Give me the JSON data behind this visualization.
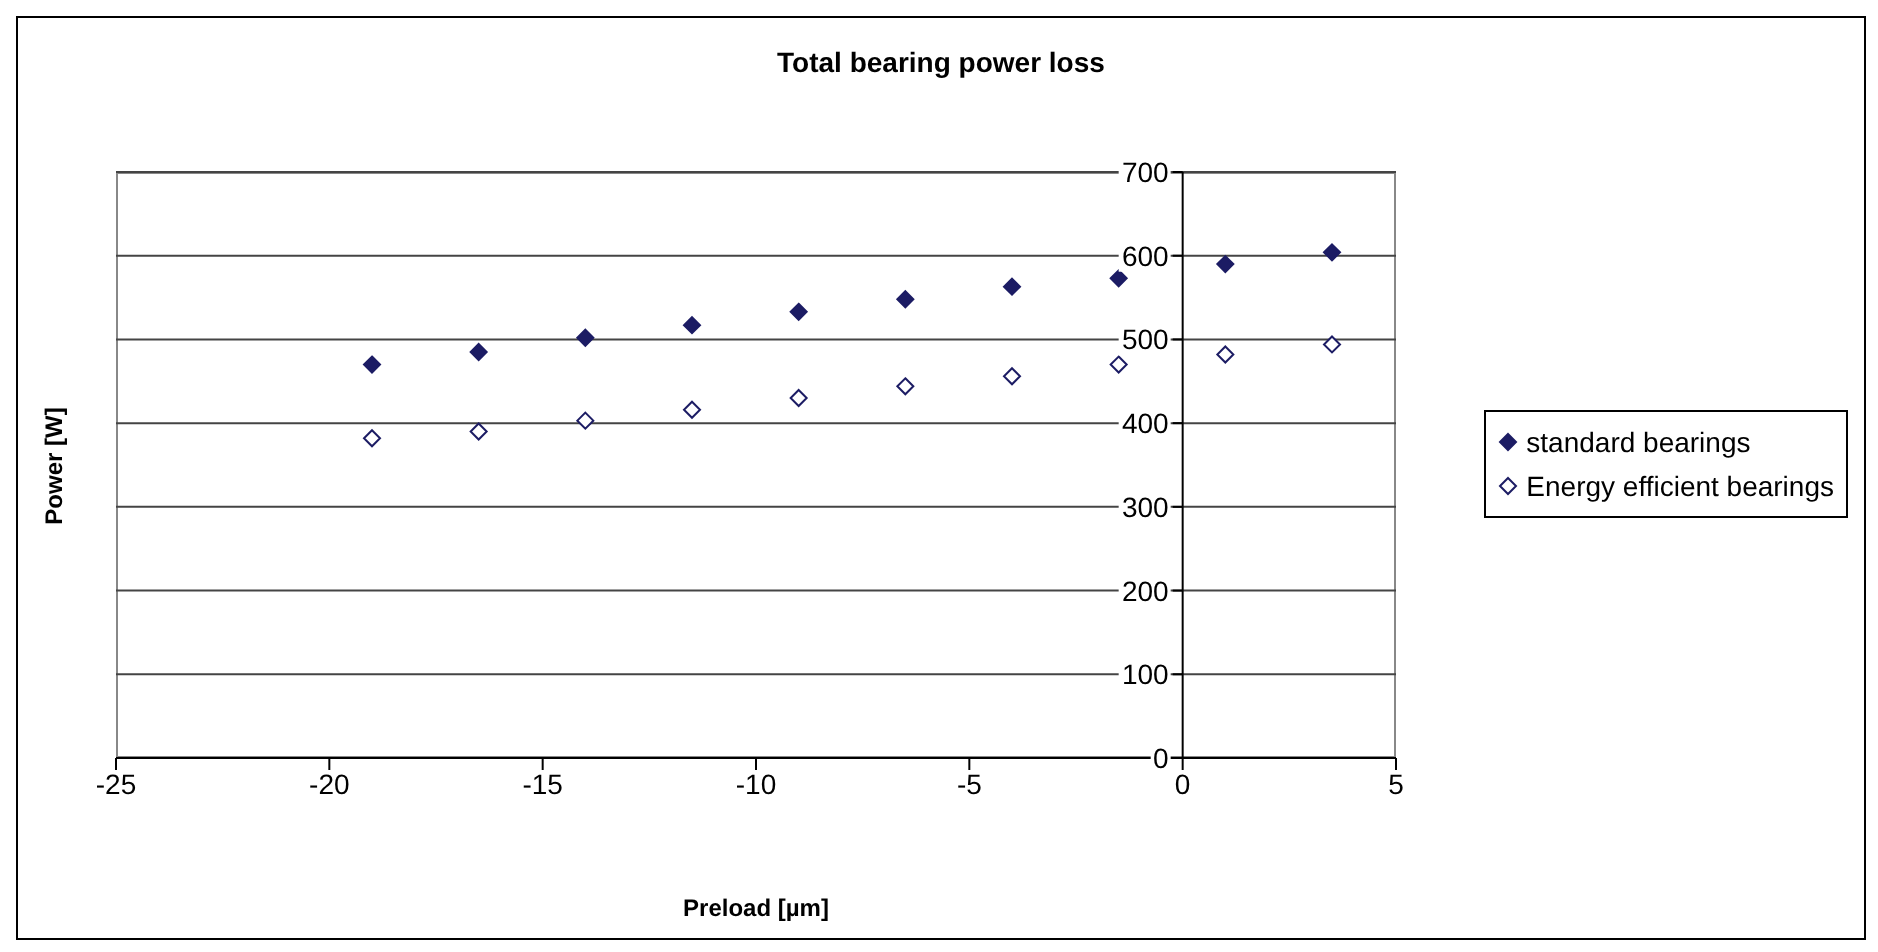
{
  "chart_data": {
    "type": "scatter",
    "title": "Total bearing power loss",
    "xlabel": "Preload [µm]",
    "ylabel": "Power [W]",
    "series": [
      {
        "name": "standard bearings",
        "color": "#1c1c64",
        "x": [
          -19,
          -16.5,
          -14,
          -11.5,
          -9,
          -6.5,
          -4,
          -1.5,
          1,
          3.5
        ],
        "values": [
          470,
          485,
          502,
          517,
          533,
          548,
          563,
          573,
          590,
          604
        ]
      },
      {
        "name": "Energy efficient bearings",
        "color": "#1c1c64",
        "x": [
          -19,
          -16.5,
          -14,
          -11.5,
          -9,
          -6.5,
          -4,
          -1.5,
          1,
          3.5
        ],
        "values": [
          382,
          390,
          403,
          416,
          430,
          444,
          456,
          470,
          482,
          494
        ]
      }
    ],
    "xlim": [
      -25,
      5
    ],
    "xticks": [
      -25,
      -20,
      -15,
      -10,
      -5,
      0,
      5
    ],
    "ylim": [
      0,
      700
    ],
    "yticks": [
      0,
      100,
      200,
      300,
      400,
      500,
      600,
      700
    ],
    "grid": "y",
    "legend": "right",
    "marker": "diamond"
  }
}
